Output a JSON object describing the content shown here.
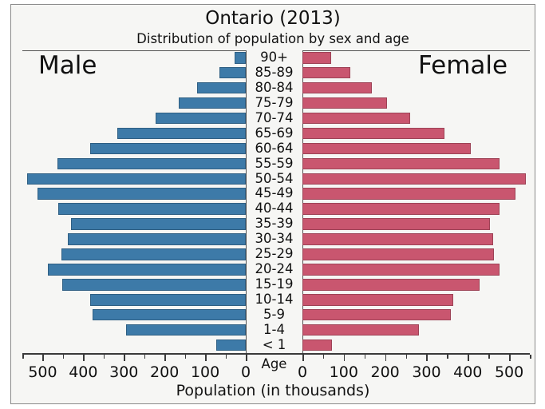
{
  "figure": {
    "title": "Ontario (2013)",
    "subtitle": "Distribution of population by sex and age",
    "left_group_label": "Male",
    "right_group_label": "Female",
    "age_axis_label": "Age",
    "x_axis_label": "Population (in thousands)",
    "colors": {
      "male_bar": "#3d7aa8",
      "female_bar": "#c9566f",
      "figure_background": "#f6f6f4",
      "axis": "#3a3a3a",
      "text": "#111111",
      "border": "#8a8a8a"
    }
  },
  "chart_data": {
    "type": "bar",
    "subtype": "population-pyramid",
    "title": "Ontario (2013)",
    "subtitle": "Distribution of population by sex and age",
    "xlabel": "Population (in thousands)",
    "ylabel": "Age",
    "units": "thousands",
    "categories": [
      "90+",
      "85-89",
      "80-84",
      "75-79",
      "70-74",
      "65-69",
      "60-64",
      "55-59",
      "50-54",
      "45-49",
      "40-44",
      "35-39",
      "30-34",
      "25-29",
      "20-24",
      "15-19",
      "10-14",
      "5-9",
      "1-4",
      "< 1"
    ],
    "series": [
      {
        "name": "Male",
        "side": "left",
        "color": "#3d7aa8",
        "values": [
          28,
          64,
          120,
          166,
          222,
          317,
          383,
          464,
          538,
          512,
          462,
          431,
          438,
          453,
          488,
          452,
          383,
          377,
          294,
          72
        ]
      },
      {
        "name": "Female",
        "side": "right",
        "color": "#c9566f",
        "values": [
          70,
          116,
          168,
          205,
          260,
          343,
          408,
          477,
          540,
          515,
          477,
          453,
          462,
          464,
          476,
          429,
          364,
          359,
          281,
          71
        ]
      }
    ],
    "x_max": 550,
    "major_ticks": [
      0,
      100,
      200,
      300,
      400,
      500
    ],
    "minor_tick_step": 50,
    "grid": false,
    "legend_position": "none"
  }
}
